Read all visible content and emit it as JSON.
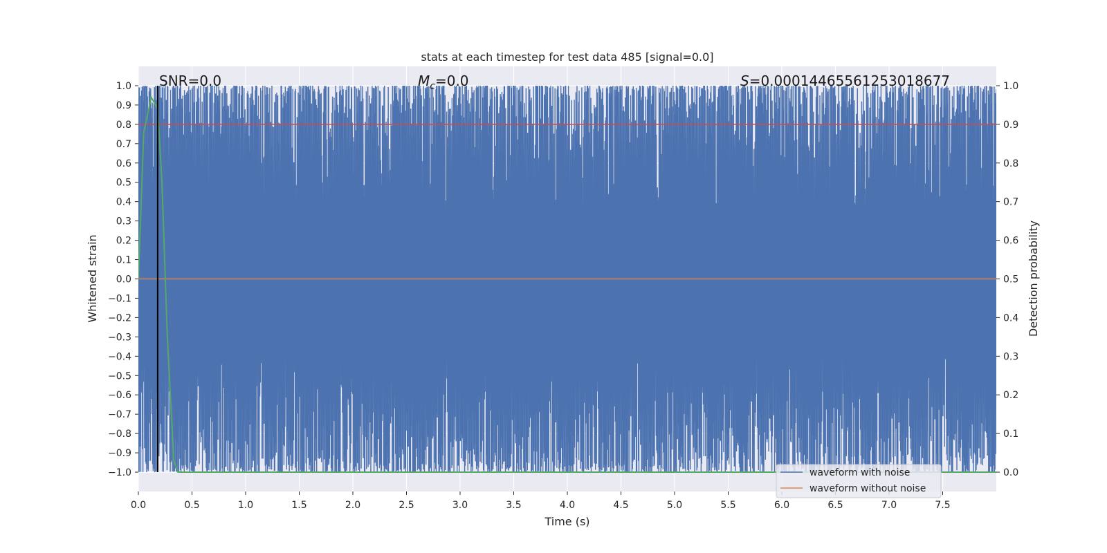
{
  "chart_data": {
    "type": "line",
    "title": "stats at each timestep for test data 485 [signal=0.0]",
    "xlabel": "Time (s)",
    "ylabel": "Whitened strain",
    "y2label": "Detection probability",
    "xlim": [
      0.0,
      8.0
    ],
    "ylim": [
      -1.1,
      1.1
    ],
    "y2lim": [
      -0.05,
      1.05
    ],
    "x_ticks": [
      "0.0",
      "0.5",
      "1.0",
      "1.5",
      "2.0",
      "2.5",
      "3.0",
      "3.5",
      "4.0",
      "4.5",
      "5.0",
      "5.5",
      "6.0",
      "6.5",
      "7.0",
      "7.5"
    ],
    "y_ticks": [
      "1.0",
      "0.9",
      "0.8",
      "0.7",
      "0.6",
      "0.5",
      "0.4",
      "0.3",
      "0.2",
      "0.1",
      "0.0",
      "−0.1",
      "−0.2",
      "−0.3",
      "−0.4",
      "−0.5",
      "−0.6",
      "−0.7",
      "−0.8",
      "−0.9",
      "−1.0"
    ],
    "y2_ticks": [
      "1.0",
      "0.9",
      "0.8",
      "0.7",
      "0.6",
      "0.5",
      "0.4",
      "0.3",
      "0.2",
      "0.1",
      "0.0"
    ],
    "grid": true,
    "legend_position": "lower-right",
    "annotations": {
      "snr": "SNR=0.0",
      "mc_symbol": "M",
      "mc_sub": "c",
      "mc_value": "=0.0",
      "s_symbol": "S",
      "s_value": "=0.00014465561253018677"
    },
    "marker_x": 0.18,
    "series": [
      {
        "name": "waveform with noise",
        "color": "#4c72b0",
        "axis": "left",
        "description_range": [
          -1.0,
          1.0
        ]
      },
      {
        "name": "waveform without noise",
        "color": "#dd8452",
        "axis": "left",
        "values_x": [
          0.0,
          8.0
        ],
        "values_y": [
          0.0,
          0.0
        ]
      },
      {
        "color": "#55a868",
        "axis": "right",
        "x": [
          0.0,
          0.05,
          0.12,
          0.18,
          0.22,
          0.27,
          0.33,
          0.37,
          0.5,
          1.0,
          2.0,
          4.0,
          6.0,
          8.0
        ],
        "y": [
          0.5,
          0.88,
          0.97,
          0.94,
          0.75,
          0.35,
          0.03,
          0.0,
          0.0,
          0.0,
          0.0,
          0.0,
          0.0,
          0.0
        ]
      },
      {
        "color": "#c44e52",
        "axis": "right",
        "values_x": [
          0.0,
          8.0
        ],
        "values_y": [
          0.9,
          0.9
        ]
      }
    ],
    "colors": {
      "plot_bg": "#eaeaf2",
      "grid": "#ffffff",
      "noise": "#4c72b0",
      "clean": "#dd8452",
      "prob": "#55a868",
      "threshold": "#c44e52",
      "marker": "#000000"
    }
  }
}
